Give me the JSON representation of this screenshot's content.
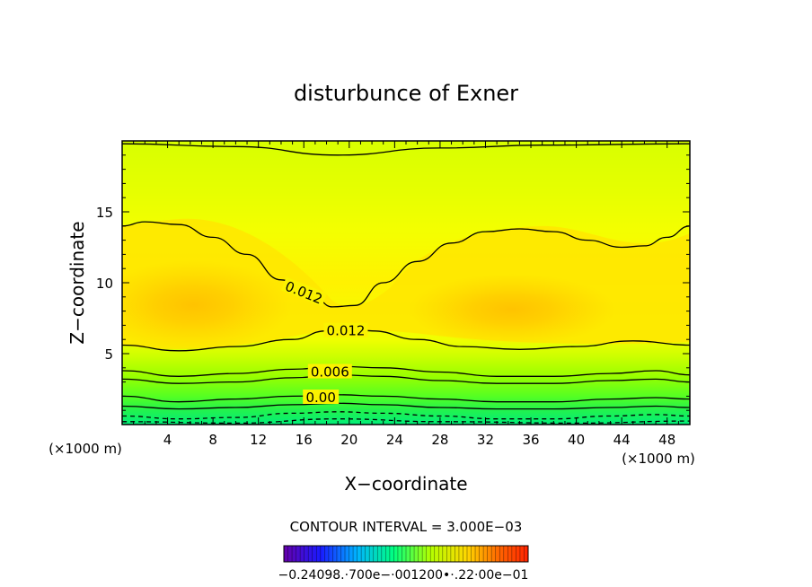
{
  "chart_data": {
    "type": "contour",
    "title": "disturbunce of Exner",
    "xlabel": "X−coordinate",
    "ylabel": "Z−coordinate",
    "x_unit_left": "(×1000 m)",
    "x_unit_right": "(×1000 m)",
    "xlim": [
      0,
      50
    ],
    "ylim": [
      0,
      20
    ],
    "xticks": [
      4,
      8,
      12,
      16,
      20,
      24,
      28,
      32,
      36,
      40,
      44,
      48
    ],
    "yticks": [
      5,
      10,
      15
    ],
    "contour_interval_text": "CONTOUR INTERVAL = 3.000E−03",
    "contour_labels": [
      {
        "text": "0.012",
        "x": 16,
        "z": 9.3,
        "angle": 22
      },
      {
        "text": "0.012",
        "x": 19.7,
        "z": 6.6,
        "angle": 0
      },
      {
        "text": "0.006",
        "x": 18.3,
        "z": 3.7,
        "angle": 0
      },
      {
        "text": "0.00",
        "x": 17.5,
        "z": 1.9,
        "angle": 0
      }
    ],
    "contour_lines": [
      {
        "style": "solid",
        "points": [
          [
            0,
            19.8
          ],
          [
            10,
            19.6
          ],
          [
            19,
            19
          ],
          [
            28,
            19.5
          ],
          [
            37,
            19.7
          ],
          [
            50,
            19.8
          ]
        ]
      },
      {
        "style": "solid",
        "points": [
          [
            0,
            14
          ],
          [
            2,
            14.3
          ],
          [
            5,
            14.1
          ],
          [
            8,
            13.2
          ],
          [
            11,
            12
          ],
          [
            14,
            10.2
          ],
          [
            17,
            8.9
          ],
          [
            18.5,
            8.3
          ],
          [
            20.5,
            8.4
          ],
          [
            23,
            10
          ],
          [
            26,
            11.5
          ],
          [
            29,
            12.8
          ],
          [
            32,
            13.6
          ],
          [
            35,
            13.8
          ],
          [
            38,
            13.6
          ],
          [
            41,
            13
          ],
          [
            44,
            12.5
          ],
          [
            46,
            12.6
          ],
          [
            48,
            13.2
          ],
          [
            50,
            14
          ]
        ]
      },
      {
        "style": "solid",
        "points": [
          [
            0,
            5.6
          ],
          [
            5,
            5.2
          ],
          [
            10,
            5.5
          ],
          [
            15,
            6
          ],
          [
            18,
            6.6
          ],
          [
            20,
            6.8
          ],
          [
            22,
            6.6
          ],
          [
            26,
            6
          ],
          [
            30,
            5.5
          ],
          [
            35,
            5.3
          ],
          [
            40,
            5.5
          ],
          [
            45,
            5.9
          ],
          [
            50,
            5.6
          ]
        ]
      },
      {
        "style": "solid",
        "points": [
          [
            0,
            3.8
          ],
          [
            5,
            3.4
          ],
          [
            10,
            3.6
          ],
          [
            15,
            3.9
          ],
          [
            19,
            4.1
          ],
          [
            23,
            4
          ],
          [
            28,
            3.7
          ],
          [
            33,
            3.4
          ],
          [
            38,
            3.4
          ],
          [
            43,
            3.6
          ],
          [
            47,
            3.8
          ],
          [
            50,
            3.5
          ]
        ]
      },
      {
        "style": "solid",
        "points": [
          [
            0,
            3.2
          ],
          [
            5,
            2.9
          ],
          [
            10,
            3
          ],
          [
            15,
            3.3
          ],
          [
            19,
            3.5
          ],
          [
            23,
            3.4
          ],
          [
            28,
            3.1
          ],
          [
            33,
            2.9
          ],
          [
            38,
            2.9
          ],
          [
            43,
            3.1
          ],
          [
            47,
            3.2
          ],
          [
            50,
            3
          ]
        ]
      },
      {
        "style": "solid",
        "points": [
          [
            0,
            2
          ],
          [
            5,
            1.6
          ],
          [
            10,
            1.8
          ],
          [
            15,
            2
          ],
          [
            19,
            2.1
          ],
          [
            23,
            2
          ],
          [
            28,
            1.8
          ],
          [
            33,
            1.6
          ],
          [
            38,
            1.6
          ],
          [
            43,
            1.8
          ],
          [
            47,
            1.9
          ],
          [
            50,
            1.8
          ]
        ]
      },
      {
        "style": "solid",
        "points": [
          [
            0,
            1.3
          ],
          [
            5,
            1.1
          ],
          [
            10,
            1.2
          ],
          [
            15,
            1.4
          ],
          [
            19,
            1.5
          ],
          [
            23,
            1.4
          ],
          [
            28,
            1.2
          ],
          [
            33,
            1.1
          ],
          [
            38,
            1.1
          ],
          [
            43,
            1.2
          ],
          [
            47,
            1.3
          ],
          [
            50,
            1.2
          ]
        ]
      },
      {
        "style": "dashed",
        "points": [
          [
            0,
            0.6
          ],
          [
            5,
            0.4
          ],
          [
            10,
            0.5
          ],
          [
            15,
            0.8
          ],
          [
            19,
            0.9
          ],
          [
            23,
            0.8
          ],
          [
            28,
            0.6
          ],
          [
            33,
            0.4
          ],
          [
            38,
            0.4
          ],
          [
            43,
            0.6
          ],
          [
            47,
            0.7
          ],
          [
            50,
            0.6
          ]
        ]
      },
      {
        "style": "dashed",
        "points": [
          [
            0,
            0.2
          ],
          [
            10,
            0.1
          ],
          [
            19,
            0.4
          ],
          [
            28,
            0.2
          ],
          [
            40,
            0.1
          ],
          [
            50,
            0.25
          ]
        ]
      }
    ],
    "colorbar_labels": "−0.24098.·700e−·001200•·.22·00e−01",
    "colors": {
      "bg_top": "#d8ff00",
      "band_upper": "#f2ff00",
      "core": "#ffd600",
      "core_inner": "#ffc300",
      "low1": "#b8ff00",
      "low2": "#7fff00",
      "low3": "#33ff33",
      "bottom": "#00ee7a"
    }
  }
}
